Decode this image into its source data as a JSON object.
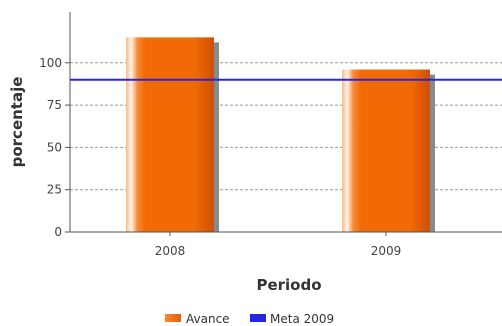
{
  "chart_data": {
    "type": "bar",
    "categories": [
      "2008",
      "2009"
    ],
    "series": [
      {
        "name": "Avance",
        "values": [
          115,
          96
        ]
      }
    ],
    "reference_lines": [
      {
        "name": "Meta 2009",
        "value": 90
      }
    ],
    "xlabel": "Periodo",
    "ylabel": "porcentaje",
    "ylim": [
      0,
      130
    ],
    "yticks": [
      0,
      25,
      50,
      75,
      100
    ],
    "grid": "horizontal dashed",
    "legend": "bottom-center",
    "colors": {
      "bar": "#f26a05",
      "bar_light": "#fdd9bc",
      "bar_dark": "#cf4f00",
      "bar_shadow": "#8a8a8a",
      "reference_line": "#2626e0",
      "grid": "#9a9a9a",
      "axis": "#555555"
    }
  }
}
